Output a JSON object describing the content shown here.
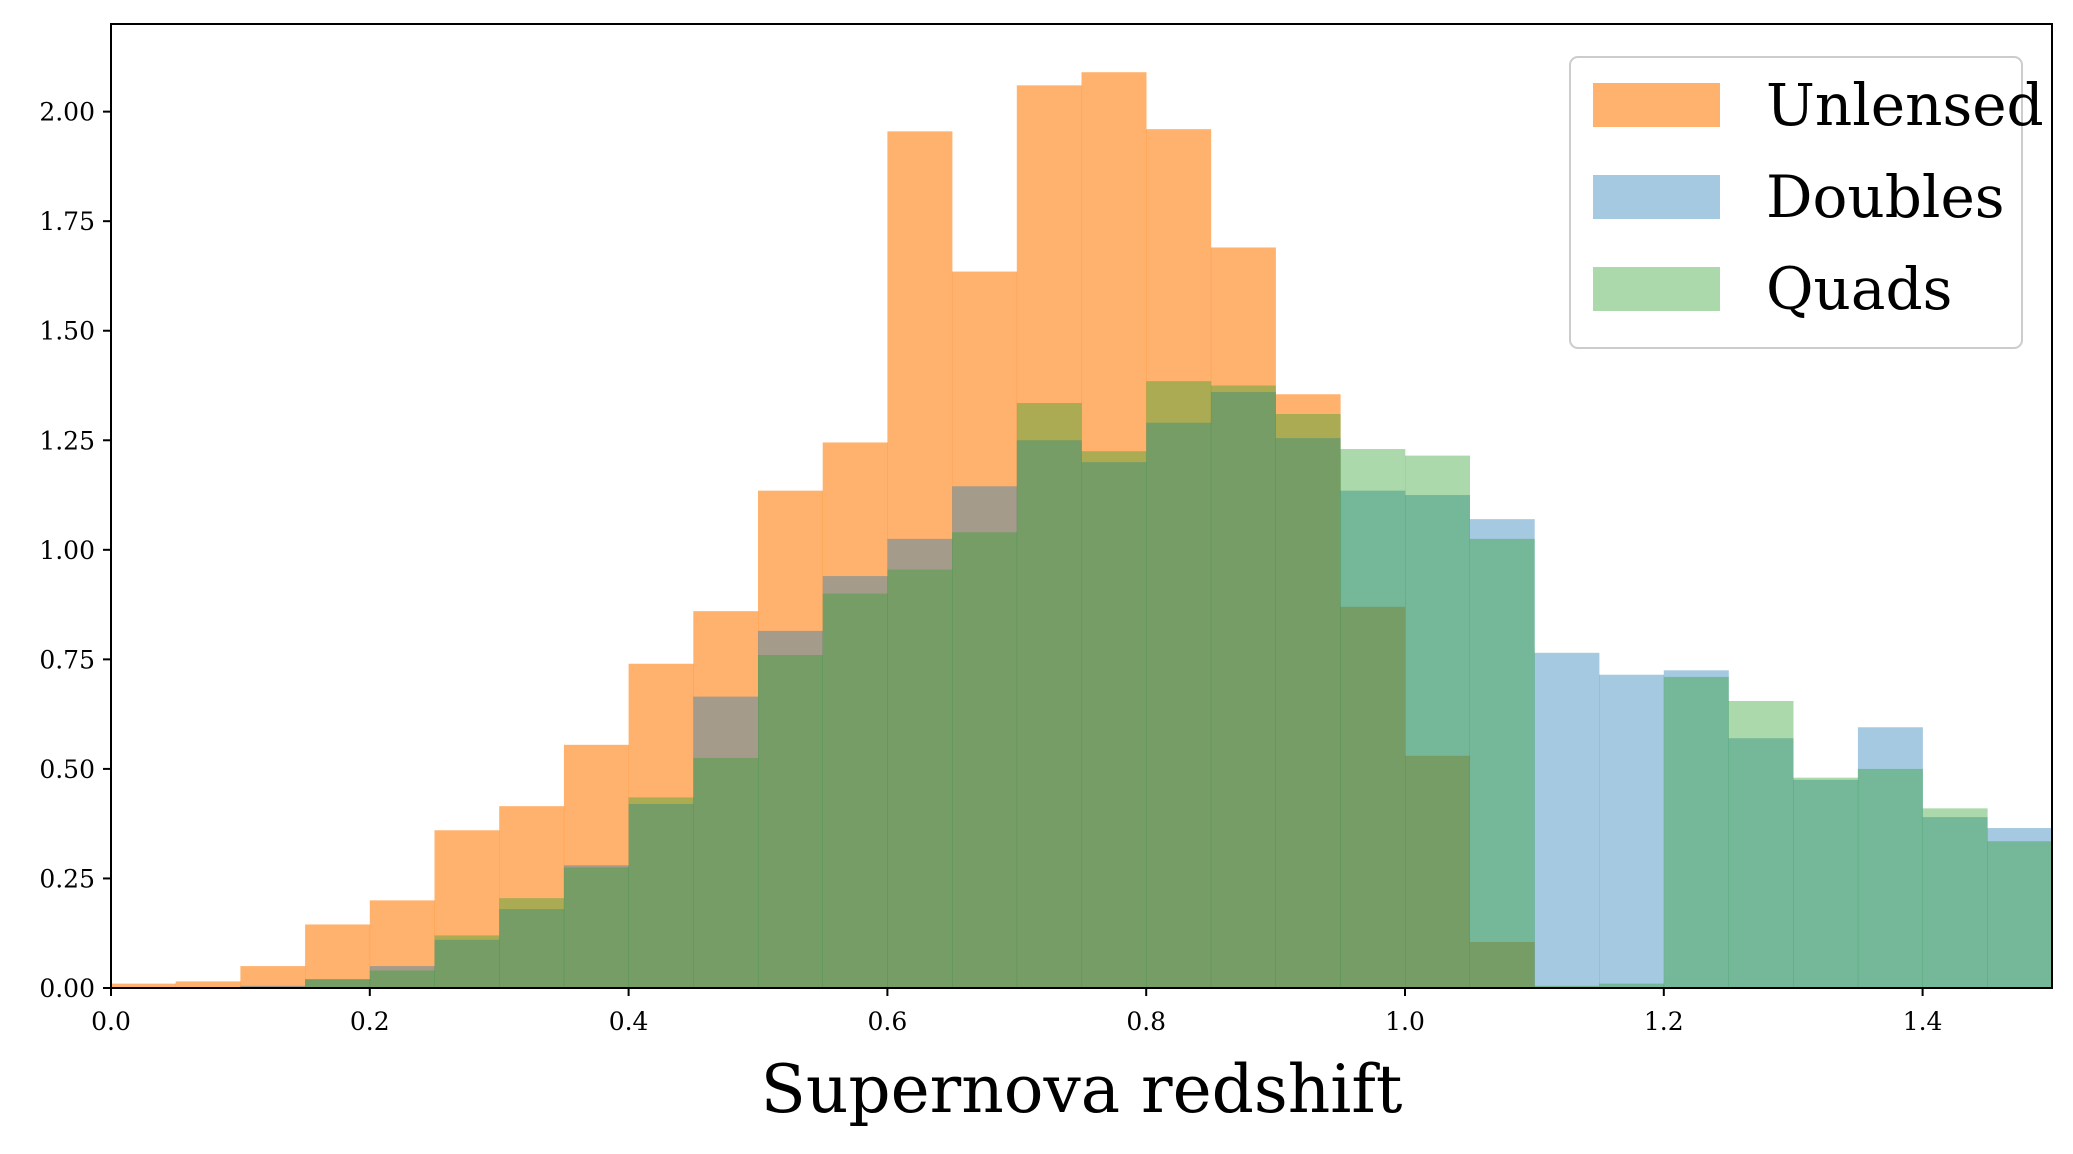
{
  "chart_data": {
    "type": "bar",
    "title": "",
    "xlabel": "Supernova redshift",
    "ylabel": "",
    "xlim": [
      0.0,
      1.5
    ],
    "ylim": [
      0.0,
      2.2
    ],
    "grid": false,
    "legend_position": "top-right",
    "bin_width": 0.05,
    "x_ticks": [
      "0.0",
      "0.2",
      "0.4",
      "0.6",
      "0.8",
      "1.0",
      "1.2",
      "1.4"
    ],
    "y_ticks": [
      "0.00",
      "0.25",
      "0.50",
      "0.75",
      "1.00",
      "1.25",
      "1.50",
      "1.75",
      "2.00"
    ],
    "bin_starts": [
      0.0,
      0.05,
      0.1,
      0.15,
      0.2,
      0.25,
      0.3,
      0.35,
      0.4,
      0.45,
      0.5,
      0.55,
      0.6,
      0.65,
      0.7,
      0.75,
      0.8,
      0.85,
      0.9,
      0.95,
      1.0,
      1.05,
      1.1,
      1.15,
      1.2,
      1.25,
      1.3,
      1.35,
      1.4,
      1.45
    ],
    "series": [
      {
        "name": "Unlensed",
        "color": "#ff7f0e",
        "opacity": 0.6,
        "values": [
          0.01,
          0.015,
          0.05,
          0.145,
          0.2,
          0.36,
          0.415,
          0.555,
          0.74,
          0.86,
          1.135,
          1.245,
          1.955,
          1.635,
          2.06,
          2.09,
          1.96,
          1.69,
          1.355,
          0.87,
          0.53,
          0.105,
          0.0,
          0.0,
          0.0,
          0.0,
          0.0,
          0.0,
          0.0,
          0.0
        ]
      },
      {
        "name": "Doubles",
        "color": "#1f77b4",
        "opacity": 0.4,
        "values": [
          0.0,
          0.0,
          0.005,
          0.02,
          0.05,
          0.11,
          0.18,
          0.28,
          0.42,
          0.665,
          0.815,
          0.94,
          1.025,
          1.145,
          1.25,
          1.2,
          1.29,
          1.36,
          1.255,
          1.135,
          1.125,
          1.07,
          0.765,
          0.715,
          0.725,
          0.57,
          0.475,
          0.595,
          0.39,
          0.365
        ]
      },
      {
        "name": "Quads",
        "color": "#2ca02c",
        "opacity": 0.4,
        "values": [
          0.0,
          0.0,
          0.0,
          0.02,
          0.04,
          0.12,
          0.205,
          0.275,
          0.435,
          0.525,
          0.76,
          0.9,
          0.955,
          1.04,
          1.335,
          1.225,
          1.385,
          1.375,
          1.31,
          1.23,
          1.215,
          1.025,
          0.005,
          0.01,
          0.71,
          0.655,
          0.48,
          0.5,
          0.41,
          0.335
        ]
      }
    ]
  }
}
